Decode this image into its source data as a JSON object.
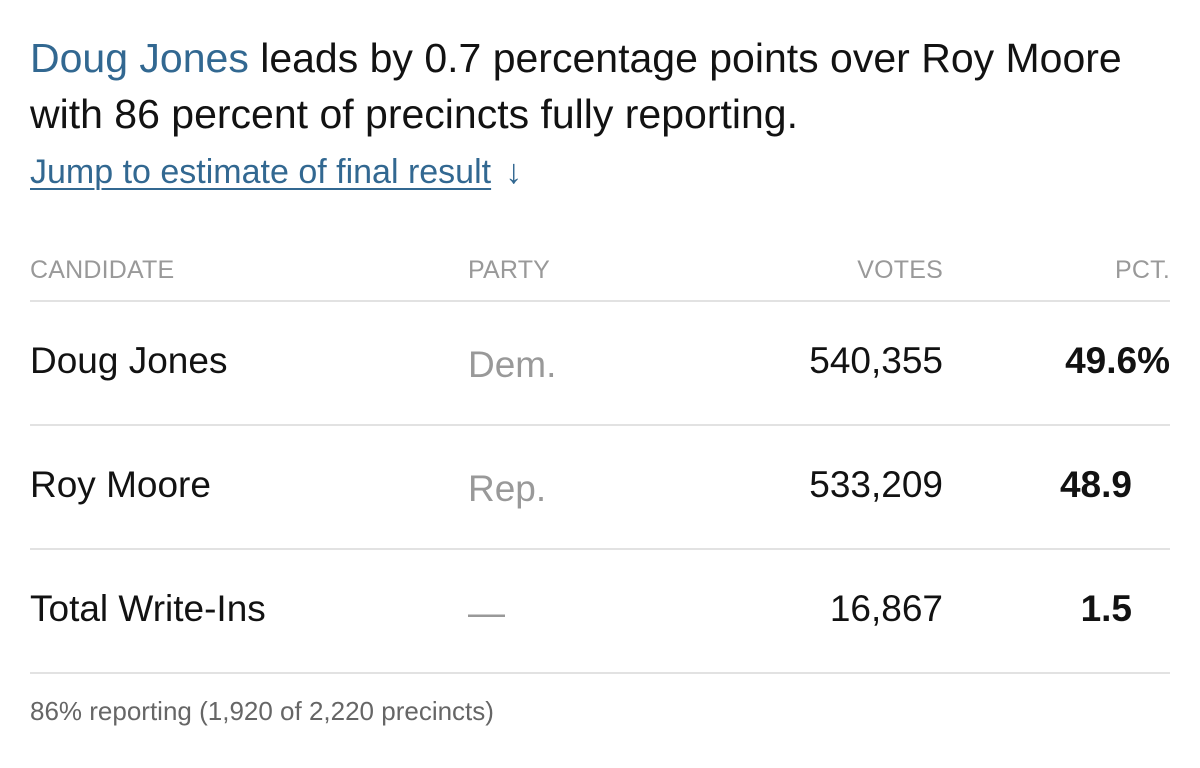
{
  "headline": {
    "lead_name": "Doug Jones",
    "rest": " leads by 0.7 percentage points over Roy Moore with 86 percent of precincts fully reporting."
  },
  "jump_link": {
    "label": "Jump to estimate of final result",
    "arrow": "↓"
  },
  "table": {
    "columns": {
      "candidate": "CANDIDATE",
      "party": "PARTY",
      "votes": "VOTES",
      "pct": "PCT."
    },
    "rows": [
      {
        "candidate": "Doug Jones",
        "party": "Dem.",
        "votes": "540,355",
        "pct": "49.6%"
      },
      {
        "candidate": "Roy Moore",
        "party": "Rep.",
        "votes": "533,209",
        "pct": "48.9"
      },
      {
        "candidate": "Total Write-Ins",
        "party": "—",
        "votes": "16,867",
        "pct": "1.5"
      }
    ]
  },
  "footnote": "86% reporting (1,920 of 2,220 precincts)",
  "colors": {
    "link": "#326891",
    "text": "#121212",
    "muted": "#999999",
    "divider": "#e2e2e2"
  }
}
